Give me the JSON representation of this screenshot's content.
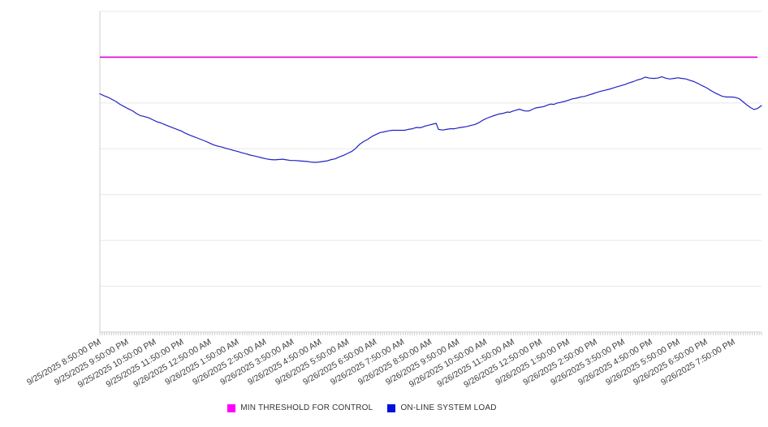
{
  "chart_data": {
    "type": "line",
    "title": "",
    "xlabel": "",
    "ylabel": "",
    "x_tick_labels": [
      "9/25/2025 8:50:00 PM",
      "9/25/2025 9:50:00 PM",
      "9/25/2025 10:50:00 PM",
      "9/25/2025 11:50:00 PM",
      "9/26/2025 12:50:00 AM",
      "9/26/2025 1:50:00 AM",
      "9/26/2025 2:50:00 AM",
      "9/26/2025 3:50:00 AM",
      "9/26/2025 4:50:00 AM",
      "9/26/2025 5:50:00 AM",
      "9/26/2025 6:50:00 AM",
      "9/26/2025 7:50:00 AM",
      "9/26/2025 8:50:00 AM",
      "9/26/2025 9:50:00 AM",
      "9/26/2025 10:50:00 AM",
      "9/26/2025 11:50:00 AM",
      "9/26/2025 12:50:00 PM",
      "9/26/2025 1:50:00 PM",
      "9/26/2025 2:50:00 PM",
      "9/26/2025 3:50:00 PM",
      "9/26/2025 4:50:00 PM",
      "9/26/2025 5:50:00 PM",
      "9/26/2025 6:50:00 PM",
      "9/26/2025 7:50:00 PM"
    ],
    "x_axis": {
      "span_minutes": 1440,
      "major_tick_interval_minutes": 60,
      "minor_tick_interval_minutes": 5,
      "label_rotation_deg": -30
    },
    "y_axis": {
      "labels_visible": false,
      "ylim": [
        0,
        100
      ],
      "gridline_divisions": 7,
      "note": "no y-axis tick labels shown; values are relative (percent of plot height)"
    },
    "grid": "horizontal",
    "legend_position": "bottom-center",
    "series": [
      {
        "name": "MIN THRESHOLD FOR CONTROL",
        "type": "threshold-line",
        "color": "#DD00DD",
        "legend_color": "#FF00FF",
        "value": 85.7
      },
      {
        "name": "ON-LINE SYSTEM LOAD",
        "type": "line",
        "color": "#2222C4",
        "legend_color": "#0011DD",
        "points": [
          [
            0,
            74.3
          ],
          [
            9,
            73.7
          ],
          [
            18,
            73.2
          ],
          [
            27,
            72.5
          ],
          [
            35,
            71.9
          ],
          [
            44,
            71.0
          ],
          [
            53,
            70.3
          ],
          [
            62,
            69.6
          ],
          [
            71,
            69.0
          ],
          [
            80,
            68.1
          ],
          [
            88,
            67.5
          ],
          [
            97,
            67.2
          ],
          [
            106,
            66.8
          ],
          [
            115,
            66.2
          ],
          [
            124,
            65.6
          ],
          [
            133,
            65.2
          ],
          [
            141,
            64.7
          ],
          [
            150,
            64.2
          ],
          [
            159,
            63.7
          ],
          [
            168,
            63.2
          ],
          [
            177,
            62.7
          ],
          [
            186,
            62.0
          ],
          [
            194,
            61.5
          ],
          [
            203,
            61.0
          ],
          [
            212,
            60.5
          ],
          [
            221,
            60.0
          ],
          [
            230,
            59.5
          ],
          [
            239,
            58.9
          ],
          [
            247,
            58.4
          ],
          [
            256,
            58.0
          ],
          [
            265,
            57.7
          ],
          [
            274,
            57.3
          ],
          [
            283,
            57.0
          ],
          [
            292,
            56.6
          ],
          [
            300,
            56.3
          ],
          [
            309,
            55.9
          ],
          [
            318,
            55.6
          ],
          [
            327,
            55.2
          ],
          [
            336,
            54.9
          ],
          [
            345,
            54.6
          ],
          [
            353,
            54.3
          ],
          [
            362,
            54.0
          ],
          [
            371,
            53.8
          ],
          [
            380,
            53.7
          ],
          [
            389,
            53.8
          ],
          [
            398,
            53.9
          ],
          [
            406,
            53.7
          ],
          [
            415,
            53.5
          ],
          [
            424,
            53.5
          ],
          [
            433,
            53.4
          ],
          [
            442,
            53.3
          ],
          [
            451,
            53.2
          ],
          [
            459,
            53.0
          ],
          [
            468,
            52.9
          ],
          [
            477,
            53.0
          ],
          [
            486,
            53.2
          ],
          [
            495,
            53.4
          ],
          [
            504,
            53.8
          ],
          [
            512,
            54.0
          ],
          [
            521,
            54.6
          ],
          [
            530,
            55.1
          ],
          [
            539,
            55.7
          ],
          [
            548,
            56.3
          ],
          [
            557,
            57.3
          ],
          [
            565,
            58.5
          ],
          [
            574,
            59.4
          ],
          [
            583,
            60.1
          ],
          [
            592,
            61.0
          ],
          [
            601,
            61.6
          ],
          [
            610,
            62.2
          ],
          [
            618,
            62.4
          ],
          [
            627,
            62.7
          ],
          [
            636,
            62.9
          ],
          [
            645,
            62.9
          ],
          [
            654,
            62.9
          ],
          [
            663,
            62.9
          ],
          [
            671,
            63.2
          ],
          [
            680,
            63.4
          ],
          [
            689,
            63.8
          ],
          [
            698,
            63.7
          ],
          [
            707,
            64.2
          ],
          [
            716,
            64.5
          ],
          [
            724,
            64.8
          ],
          [
            732,
            65.1
          ],
          [
            737,
            63.2
          ],
          [
            746,
            63.0
          ],
          [
            754,
            63.2
          ],
          [
            763,
            63.4
          ],
          [
            772,
            63.4
          ],
          [
            781,
            63.7
          ],
          [
            790,
            63.9
          ],
          [
            799,
            64.1
          ],
          [
            807,
            64.4
          ],
          [
            816,
            64.7
          ],
          [
            825,
            65.3
          ],
          [
            834,
            66.1
          ],
          [
            843,
            66.7
          ],
          [
            852,
            67.2
          ],
          [
            860,
            67.6
          ],
          [
            869,
            68.0
          ],
          [
            878,
            68.2
          ],
          [
            887,
            68.6
          ],
          [
            892,
            68.5
          ],
          [
            899,
            68.9
          ],
          [
            906,
            69.2
          ],
          [
            913,
            69.5
          ],
          [
            921,
            69.1
          ],
          [
            928,
            68.9
          ],
          [
            935,
            69.0
          ],
          [
            942,
            69.5
          ],
          [
            949,
            69.9
          ],
          [
            958,
            70.1
          ],
          [
            966,
            70.3
          ],
          [
            975,
            70.8
          ],
          [
            981,
            71.1
          ],
          [
            988,
            71.0
          ],
          [
            995,
            71.4
          ],
          [
            1002,
            71.6
          ],
          [
            1011,
            71.9
          ],
          [
            1020,
            72.3
          ],
          [
            1028,
            72.7
          ],
          [
            1037,
            72.9
          ],
          [
            1046,
            73.3
          ],
          [
            1055,
            73.5
          ],
          [
            1064,
            73.9
          ],
          [
            1073,
            74.3
          ],
          [
            1081,
            74.7
          ],
          [
            1090,
            75.1
          ],
          [
            1099,
            75.4
          ],
          [
            1108,
            75.7
          ],
          [
            1117,
            76.1
          ],
          [
            1126,
            76.5
          ],
          [
            1134,
            76.8
          ],
          [
            1143,
            77.2
          ],
          [
            1152,
            77.7
          ],
          [
            1161,
            78.1
          ],
          [
            1170,
            78.6
          ],
          [
            1178,
            78.9
          ],
          [
            1187,
            79.5
          ],
          [
            1196,
            79.2
          ],
          [
            1205,
            79.1
          ],
          [
            1214,
            79.2
          ],
          [
            1223,
            79.6
          ],
          [
            1231,
            79.2
          ],
          [
            1240,
            78.9
          ],
          [
            1249,
            79.1
          ],
          [
            1258,
            79.3
          ],
          [
            1267,
            79.1
          ],
          [
            1276,
            78.9
          ],
          [
            1284,
            78.5
          ],
          [
            1293,
            78.1
          ],
          [
            1302,
            77.5
          ],
          [
            1311,
            76.8
          ],
          [
            1320,
            76.2
          ],
          [
            1329,
            75.4
          ],
          [
            1337,
            74.7
          ],
          [
            1346,
            74.1
          ],
          [
            1355,
            73.5
          ],
          [
            1364,
            73.3
          ],
          [
            1373,
            73.3
          ],
          [
            1382,
            73.2
          ],
          [
            1391,
            72.8
          ],
          [
            1399,
            71.9
          ],
          [
            1408,
            70.8
          ],
          [
            1417,
            69.9
          ],
          [
            1424,
            69.4
          ],
          [
            1431,
            69.7
          ],
          [
            1437,
            70.3
          ],
          [
            1440,
            70.6
          ]
        ]
      }
    ],
    "colors": {
      "gridline": "#e8e8e8",
      "axis": "#cfcfcf",
      "minor_tick": "#b8b8b8",
      "tick_label_text": "#3c3c3c",
      "legend_text": "#333333",
      "background": "#ffffff"
    }
  },
  "legend": {
    "items": [
      {
        "label": "MIN THRESHOLD FOR CONTROL",
        "color": "#FF00FF"
      },
      {
        "label": "ON-LINE SYSTEM LOAD",
        "color": "#0011DD"
      }
    ]
  }
}
